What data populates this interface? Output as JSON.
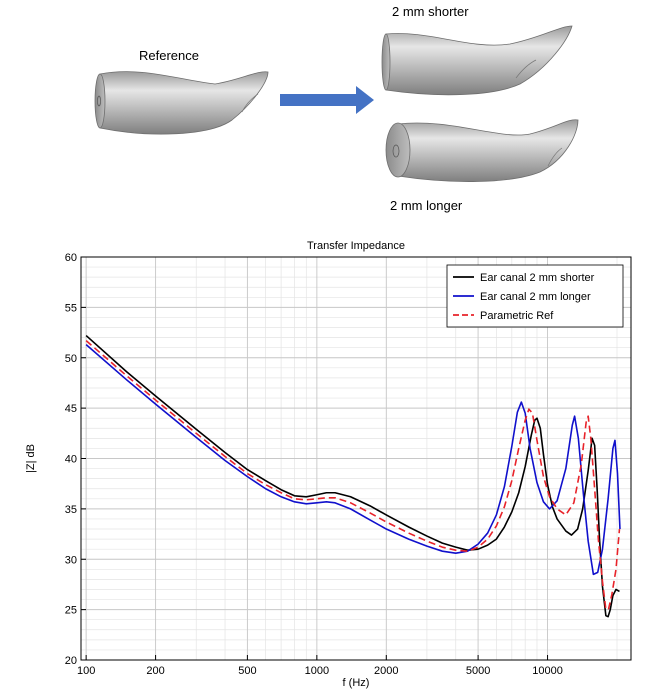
{
  "illustration": {
    "reference_label": "Reference",
    "shorter_label": "2 mm shorter",
    "longer_label": "2 mm longer",
    "arrow_color": "#4472c4",
    "model_color": "#b7b7b7"
  },
  "chart_data": {
    "type": "line",
    "title": "Transfer Impedance",
    "xlabel": "f (Hz)",
    "ylabel": "|Z| dB",
    "xscale": "log",
    "xlim": [
      95,
      23000
    ],
    "ylim": [
      20,
      60
    ],
    "grid": true,
    "legend_position": "top-right",
    "xticks": [
      100,
      200,
      500,
      1000,
      2000,
      5000,
      10000
    ],
    "xtick_labels": [
      "100",
      "200",
      "500",
      "1000",
      "2000",
      "5000",
      "10000"
    ],
    "yticks": [
      20,
      25,
      30,
      35,
      40,
      45,
      50,
      55,
      60
    ],
    "ytick_labels": [
      "20",
      "25",
      "30",
      "35",
      "40",
      "45",
      "50",
      "55",
      "60"
    ],
    "series": [
      {
        "name": "Ear canal 2 mm shorter",
        "color": "#000000",
        "dash": "solid",
        "points": [
          [
            100,
            52.2
          ],
          [
            150,
            48.6
          ],
          [
            200,
            46.2
          ],
          [
            300,
            42.9
          ],
          [
            400,
            40.6
          ],
          [
            500,
            38.9
          ],
          [
            600,
            37.8
          ],
          [
            700,
            36.9
          ],
          [
            800,
            36.3
          ],
          [
            900,
            36.2
          ],
          [
            1000,
            36.4
          ],
          [
            1100,
            36.6
          ],
          [
            1200,
            36.6
          ],
          [
            1400,
            36.2
          ],
          [
            1700,
            35.3
          ],
          [
            2000,
            34.4
          ],
          [
            2500,
            33.2
          ],
          [
            3000,
            32.3
          ],
          [
            3500,
            31.6
          ],
          [
            4000,
            31.2
          ],
          [
            4500,
            30.9
          ],
          [
            5000,
            31.0
          ],
          [
            5500,
            31.4
          ],
          [
            6000,
            32.0
          ],
          [
            6500,
            33.2
          ],
          [
            7000,
            34.7
          ],
          [
            7500,
            36.6
          ],
          [
            8000,
            39.2
          ],
          [
            8500,
            42.3
          ],
          [
            8800,
            43.8
          ],
          [
            9000,
            44.0
          ],
          [
            9300,
            43.0
          ],
          [
            9600,
            40.4
          ],
          [
            10000,
            37.4
          ],
          [
            10500,
            35.2
          ],
          [
            11000,
            34.0
          ],
          [
            12000,
            32.8
          ],
          [
            12700,
            32.4
          ],
          [
            13500,
            33.0
          ],
          [
            14200,
            35.0
          ],
          [
            15000,
            38.8
          ],
          [
            15600,
            42.0
          ],
          [
            16000,
            41.3
          ],
          [
            16400,
            37.0
          ],
          [
            16800,
            32.0
          ],
          [
            17300,
            27.3
          ],
          [
            17900,
            24.4
          ],
          [
            18300,
            24.3
          ],
          [
            18700,
            25.0
          ],
          [
            19200,
            26.4
          ],
          [
            19800,
            27.0
          ],
          [
            20500,
            26.8
          ]
        ]
      },
      {
        "name": "Ear canal 2 mm longer",
        "color": "#1010cc",
        "dash": "solid",
        "points": [
          [
            100,
            51.3
          ],
          [
            150,
            47.8
          ],
          [
            200,
            45.4
          ],
          [
            300,
            42.1
          ],
          [
            400,
            39.8
          ],
          [
            500,
            38.2
          ],
          [
            600,
            37.0
          ],
          [
            700,
            36.2
          ],
          [
            800,
            35.7
          ],
          [
            900,
            35.5
          ],
          [
            1000,
            35.6
          ],
          [
            1100,
            35.7
          ],
          [
            1200,
            35.6
          ],
          [
            1400,
            35.0
          ],
          [
            1700,
            33.9
          ],
          [
            2000,
            33.0
          ],
          [
            2500,
            32.0
          ],
          [
            3000,
            31.3
          ],
          [
            3500,
            30.8
          ],
          [
            4000,
            30.6
          ],
          [
            4500,
            30.8
          ],
          [
            5000,
            31.5
          ],
          [
            5500,
            32.6
          ],
          [
            6000,
            34.4
          ],
          [
            6500,
            37.2
          ],
          [
            7000,
            41.2
          ],
          [
            7400,
            44.6
          ],
          [
            7700,
            45.6
          ],
          [
            8000,
            44.5
          ],
          [
            8400,
            41.0
          ],
          [
            9000,
            37.6
          ],
          [
            9600,
            35.7
          ],
          [
            10200,
            35.0
          ],
          [
            11000,
            35.8
          ],
          [
            12000,
            39.0
          ],
          [
            12800,
            43.3
          ],
          [
            13100,
            44.2
          ],
          [
            13600,
            42.0
          ],
          [
            14300,
            36.5
          ],
          [
            15000,
            31.8
          ],
          [
            15800,
            28.5
          ],
          [
            16500,
            28.7
          ],
          [
            17300,
            31.0
          ],
          [
            18300,
            36.0
          ],
          [
            19200,
            41.0
          ],
          [
            19600,
            41.8
          ],
          [
            20100,
            38.5
          ],
          [
            20600,
            33.0
          ]
        ]
      },
      {
        "name": "Parametric Ref",
        "color": "#e8232a",
        "dash": "dashed",
        "points": [
          [
            100,
            51.7
          ],
          [
            150,
            48.2
          ],
          [
            200,
            45.8
          ],
          [
            300,
            42.5
          ],
          [
            400,
            40.2
          ],
          [
            500,
            38.5
          ],
          [
            600,
            37.4
          ],
          [
            700,
            36.6
          ],
          [
            800,
            36.0
          ],
          [
            900,
            35.9
          ],
          [
            1000,
            36.0
          ],
          [
            1100,
            36.1
          ],
          [
            1200,
            36.1
          ],
          [
            1400,
            35.6
          ],
          [
            1700,
            34.6
          ],
          [
            2000,
            33.7
          ],
          [
            2500,
            32.6
          ],
          [
            3000,
            31.8
          ],
          [
            3500,
            31.2
          ],
          [
            4000,
            30.9
          ],
          [
            4500,
            30.8
          ],
          [
            5000,
            31.2
          ],
          [
            5500,
            32.0
          ],
          [
            6000,
            33.3
          ],
          [
            6500,
            35.2
          ],
          [
            7000,
            37.8
          ],
          [
            7500,
            41.0
          ],
          [
            8000,
            43.8
          ],
          [
            8300,
            44.9
          ],
          [
            8600,
            44.5
          ],
          [
            9000,
            41.8
          ],
          [
            9600,
            38.2
          ],
          [
            10200,
            36.2
          ],
          [
            11000,
            35.0
          ],
          [
            12000,
            34.4
          ],
          [
            13000,
            35.6
          ],
          [
            14000,
            39.4
          ],
          [
            14700,
            43.6
          ],
          [
            15000,
            44.2
          ],
          [
            15400,
            42.0
          ],
          [
            16000,
            37.0
          ],
          [
            16600,
            32.0
          ],
          [
            17300,
            27.8
          ],
          [
            17900,
            25.0
          ],
          [
            18400,
            25.1
          ],
          [
            19000,
            26.5
          ],
          [
            19800,
            29.0
          ],
          [
            20500,
            33.0
          ]
        ]
      }
    ]
  }
}
